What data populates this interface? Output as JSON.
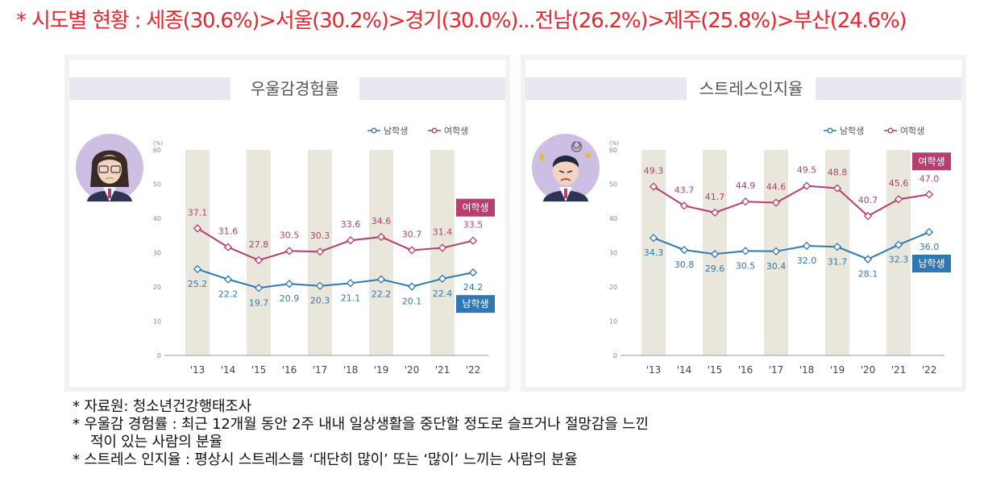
{
  "headline": "* 시도별 현황 : 세종(30.6%)>서울(30.2%)>경기(30.0%)...전남(26.2%)>제주(25.8%)>부산(24.6%)",
  "chart_data": [
    {
      "type": "line",
      "title": "우울감경험률",
      "ylabel": "(%)",
      "ylim": [
        0,
        60
      ],
      "yticks": [
        0,
        10,
        20,
        30,
        40,
        50,
        60
      ],
      "categories": [
        "'13",
        "'14",
        "'15",
        "'16",
        "'17",
        "'18",
        "'19",
        "'20",
        "'21",
        "'22"
      ],
      "legend_placement": "top-right",
      "series": [
        {
          "name": "남학생",
          "end_label": "남학생",
          "color": "#2e78b5",
          "values": [
            25.2,
            22.2,
            19.7,
            20.9,
            20.3,
            21.1,
            22.2,
            20.1,
            22.4,
            24.2
          ]
        },
        {
          "name": "여학생",
          "end_label": "여학생",
          "color": "#b73e6f",
          "values": [
            37.1,
            31.6,
            27.8,
            30.5,
            30.3,
            33.6,
            34.6,
            30.7,
            31.4,
            33.5
          ]
        }
      ]
    },
    {
      "type": "line",
      "title": "스트레스인지율",
      "ylabel": "(%)",
      "ylim": [
        0,
        60
      ],
      "yticks": [
        0,
        10,
        20,
        30,
        40,
        50,
        60
      ],
      "categories": [
        "'13",
        "'14",
        "'15",
        "'16",
        "'17",
        "'18",
        "'19",
        "'20",
        "'21",
        "'22"
      ],
      "legend_placement": "top-right",
      "series": [
        {
          "name": "남학생",
          "end_label": "남학생",
          "color": "#2e78b5",
          "values": [
            34.3,
            30.8,
            29.6,
            30.5,
            30.4,
            32.0,
            31.7,
            28.1,
            32.3,
            36.0
          ]
        },
        {
          "name": "여학생",
          "end_label": "여학생",
          "color": "#b73e6f",
          "values": [
            49.3,
            43.7,
            41.7,
            44.9,
            44.6,
            49.5,
            48.8,
            40.7,
            45.6,
            47.0
          ]
        }
      ]
    }
  ],
  "notes": [
    "* 자료원: 청소년건강행태조사",
    "* 우울감 경험률 : 최근 12개월 동안 2주 내내 일상생활을 중단할 정도로 슬프거나 절망감을 느낀",
    "적이 있는 사람의 분율",
    "* 스트레스 인지율 : 평상시 스트레스를 ‘대단히 많이’ 또는 ‘많이’ 느끼는 사람의 분율"
  ]
}
